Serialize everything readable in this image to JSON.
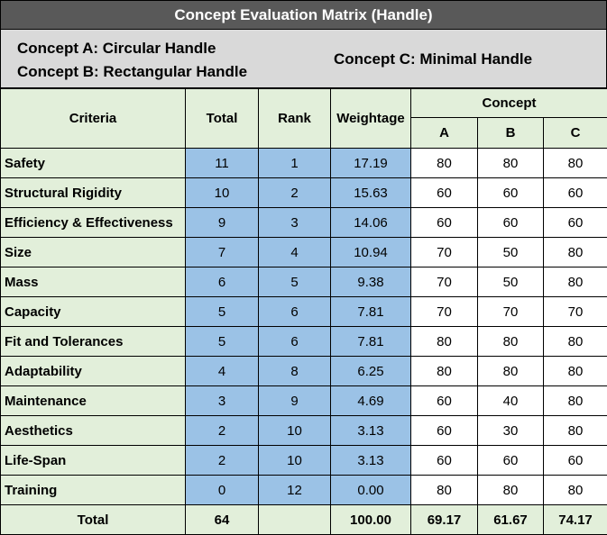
{
  "title": "Concept Evaluation Matrix (Handle)",
  "concepts": {
    "a": "Concept A: Circular Handle",
    "b": "Concept B: Rectangular Handle",
    "c": "Concept C: Minimal Handle"
  },
  "headers": {
    "criteria": "Criteria",
    "total": "Total",
    "rank": "Rank",
    "weightage": "Weightage",
    "concept": "Concept",
    "col_a": "A",
    "col_b": "B",
    "col_c": "C"
  },
  "rows": [
    {
      "criteria": "Safety",
      "total": "11",
      "rank": "1",
      "weightage": "17.19",
      "a": "80",
      "b": "80",
      "c": "80"
    },
    {
      "criteria": "Structural Rigidity",
      "total": "10",
      "rank": "2",
      "weightage": "15.63",
      "a": "60",
      "b": "60",
      "c": "60"
    },
    {
      "criteria": "Efficiency & Effectiveness",
      "total": "9",
      "rank": "3",
      "weightage": "14.06",
      "a": "60",
      "b": "60",
      "c": "60"
    },
    {
      "criteria": "Size",
      "total": "7",
      "rank": "4",
      "weightage": "10.94",
      "a": "70",
      "b": "50",
      "c": "80"
    },
    {
      "criteria": "Mass",
      "total": "6",
      "rank": "5",
      "weightage": "9.38",
      "a": "70",
      "b": "50",
      "c": "80"
    },
    {
      "criteria": "Capacity",
      "total": "5",
      "rank": "6",
      "weightage": "7.81",
      "a": "70",
      "b": "70",
      "c": "70"
    },
    {
      "criteria": "Fit and Tolerances",
      "total": "5",
      "rank": "6",
      "weightage": "7.81",
      "a": "80",
      "b": "80",
      "c": "80"
    },
    {
      "criteria": "Adaptability",
      "total": "4",
      "rank": "8",
      "weightage": "6.25",
      "a": "80",
      "b": "80",
      "c": "80"
    },
    {
      "criteria": "Maintenance",
      "total": "3",
      "rank": "9",
      "weightage": "4.69",
      "a": "60",
      "b": "40",
      "c": "80"
    },
    {
      "criteria": "Aesthetics",
      "total": "2",
      "rank": "10",
      "weightage": "3.13",
      "a": "60",
      "b": "30",
      "c": "80"
    },
    {
      "criteria": "Life-Span",
      "total": "2",
      "rank": "10",
      "weightage": "3.13",
      "a": "60",
      "b": "60",
      "c": "60"
    },
    {
      "criteria": "Training",
      "total": "0",
      "rank": "12",
      "weightage": "0.00",
      "a": "80",
      "b": "80",
      "c": "80"
    }
  ],
  "totals": {
    "label": "Total",
    "total": "64",
    "rank": "",
    "weightage": "100.00",
    "a": "69.17",
    "b": "61.67",
    "c": "74.17"
  }
}
